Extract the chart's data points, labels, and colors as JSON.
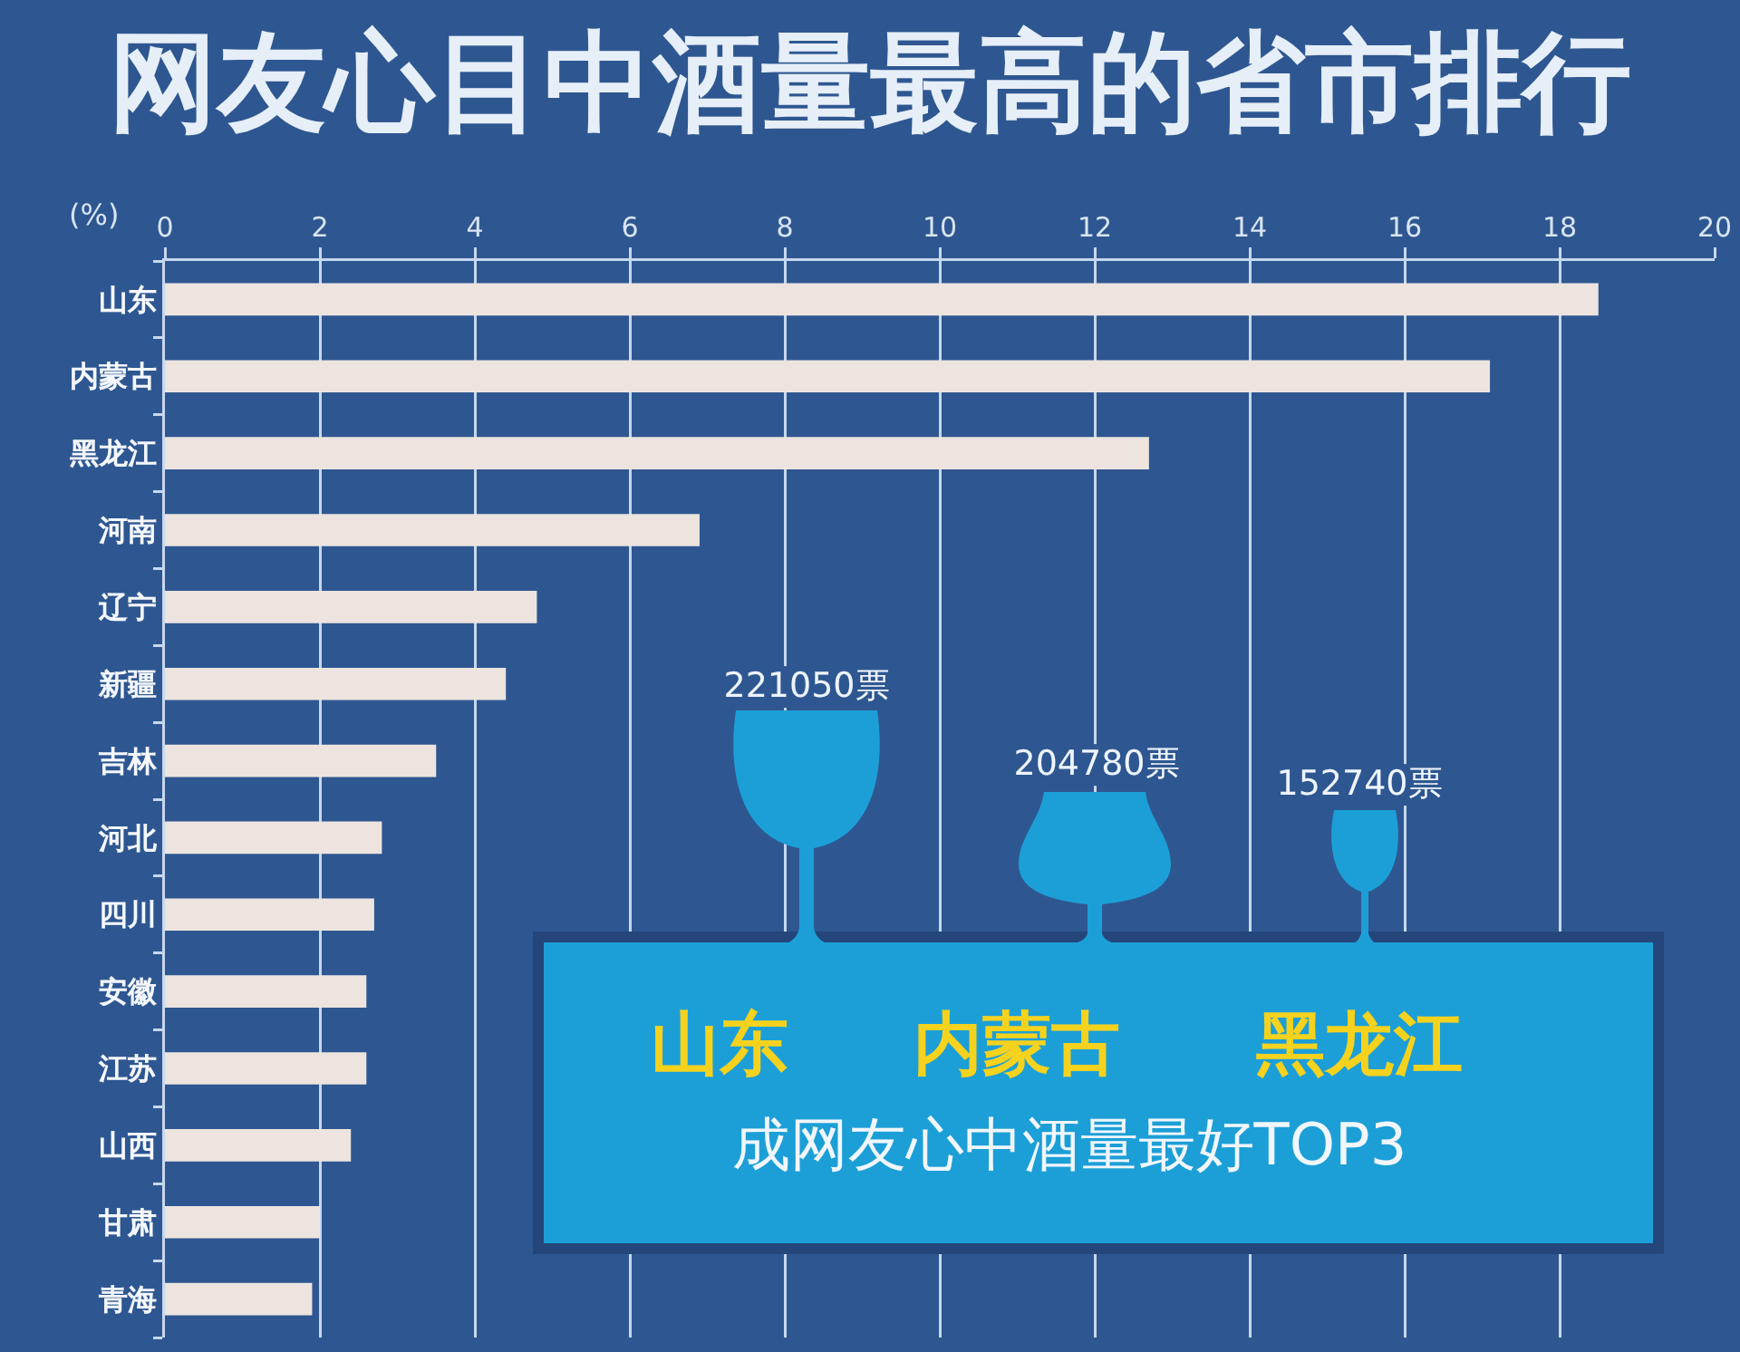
{
  "chart_data": {
    "type": "bar",
    "title": "网友心目中酒量最高的省市排行",
    "xlabel": "(%)",
    "orientation": "horizontal",
    "categories": [
      "山东",
      "内蒙古",
      "黑龙江",
      "河南",
      "辽宁",
      "新疆",
      "吉林",
      "河北",
      "四川",
      "安徽",
      "江苏",
      "山西",
      "甘肃",
      "青海"
    ],
    "values": [
      18.5,
      17.1,
      12.7,
      6.9,
      4.8,
      4.4,
      3.5,
      2.8,
      2.7,
      2.6,
      2.6,
      2.4,
      2.0,
      1.9
    ],
    "color": "#ede4e0",
    "xlim": [
      0,
      20
    ],
    "xticks": [
      0,
      2,
      4,
      6,
      8,
      10,
      12,
      14,
      16,
      18,
      20
    ],
    "grid": "x",
    "annotations": [
      "221050票",
      "204780票",
      "152740票",
      "山东",
      "内蒙古",
      "黑龙江",
      "成网友心中酒量最好TOP3"
    ]
  }
}
